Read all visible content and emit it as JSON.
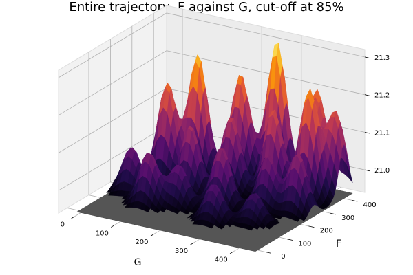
{
  "chart_data": {
    "type": "surface",
    "title": "Entire trajectory, F against G, cut-off at 85%",
    "xlabel": "G",
    "ylabel": "F",
    "zlabel": "",
    "xlim": [
      -40,
      460
    ],
    "ylim": [
      -40,
      460
    ],
    "zlim": [
      20.94,
      21.32
    ],
    "x_ticks": [
      "0",
      "100",
      "200",
      "300",
      "400"
    ],
    "y_ticks": [
      "0",
      "100",
      "200",
      "300",
      "400"
    ],
    "z_ticks": [
      "21.0",
      "21.1",
      "21.2",
      "21.3"
    ],
    "x_tick_values": [
      0,
      100,
      200,
      300,
      400
    ],
    "y_tick_values": [
      0,
      100,
      200,
      300,
      400
    ],
    "z_tick_values": [
      21.0,
      21.1,
      21.2,
      21.3
    ],
    "floor_value": 20.94,
    "colormap": "inferno",
    "floor_color": "#555555",
    "pane_color": "#f2f2f2",
    "grid": true,
    "peaks": [
      {
        "x": 30,
        "y": 170,
        "z": 21.06
      },
      {
        "x": 60,
        "y": 280,
        "z": 21.2
      },
      {
        "x": 100,
        "y": 120,
        "z": 21.08
      },
      {
        "x": 110,
        "y": 330,
        "z": 21.27
      },
      {
        "x": 140,
        "y": 240,
        "z": 21.12
      },
      {
        "x": 160,
        "y": 150,
        "z": 21.05
      },
      {
        "x": 190,
        "y": 380,
        "z": 21.22
      },
      {
        "x": 210,
        "y": 300,
        "z": 21.14
      },
      {
        "x": 240,
        "y": 200,
        "z": 21.1
      },
      {
        "x": 260,
        "y": 420,
        "z": 21.31
      },
      {
        "x": 270,
        "y": 110,
        "z": 21.04
      },
      {
        "x": 300,
        "y": 330,
        "z": 21.17
      },
      {
        "x": 330,
        "y": 250,
        "z": 21.08
      },
      {
        "x": 360,
        "y": 420,
        "z": 21.2
      },
      {
        "x": 380,
        "y": 350,
        "z": 21.23
      },
      {
        "x": 400,
        "y": 260,
        "z": 21.1
      },
      {
        "x": 420,
        "y": 400,
        "z": 21.16
      },
      {
        "x": 350,
        "y": 150,
        "z": 21.02
      }
    ]
  }
}
